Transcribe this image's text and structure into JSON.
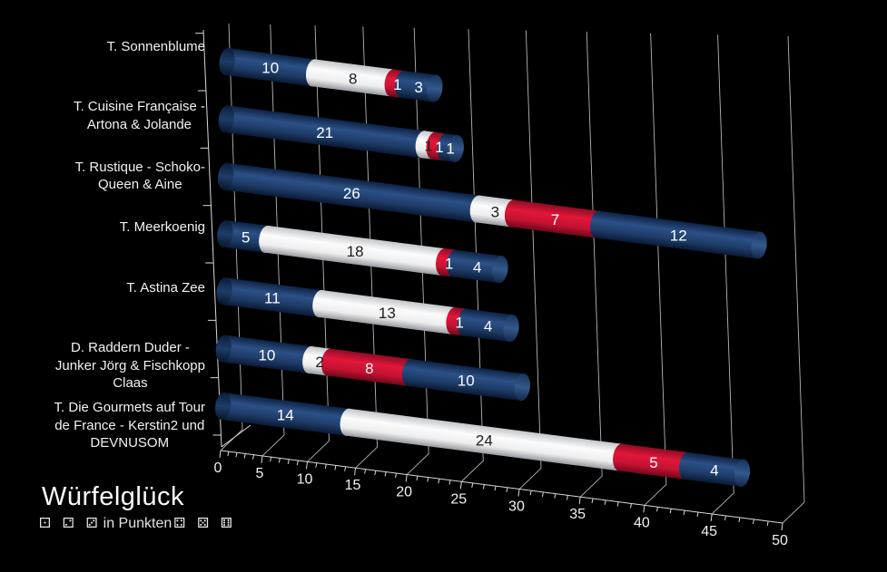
{
  "title": "Würfelglück",
  "subtitle": {
    "dice_left": "⚀ ⚁ ⚂",
    "text": "in Punkten",
    "dice_right": "⚃ ⚄ ⚅"
  },
  "colors": {
    "background": "#000000",
    "grid": "#c9c9c9",
    "axis_text": "#f2f2f2",
    "segment_navy": "#16325b",
    "segment_white": "#f2f2f2",
    "segment_red": "#d8122f"
  },
  "chart_data": {
    "type": "bar",
    "variant": "3d-horizontal-stacked-cylinders",
    "background": "#000000",
    "xlim": [
      0,
      50
    ],
    "x_tick_step": 5,
    "x_minor_tick_step": 1,
    "grid": true,
    "legend": "none",
    "axis_tick_labels": [
      0,
      5,
      10,
      15,
      20,
      25,
      30,
      35,
      40,
      45,
      50
    ],
    "segment_palette": [
      "#16325b",
      "#f2f2f2",
      "#d8122f",
      "#16325b"
    ],
    "segment_styles": [
      "navy",
      "white",
      "red",
      "navy"
    ],
    "label_color_on_dark": "#ffffff",
    "label_color_on_light": "#1d1d1d",
    "categories": [
      {
        "lines": [
          "T. Sonnenblume"
        ],
        "segments": [
          10,
          8,
          1,
          3
        ]
      },
      {
        "lines": [
          "T. Cuisine Française -",
          "Artona & Jolande"
        ],
        "segments": [
          21,
          1,
          1,
          1
        ]
      },
      {
        "lines": [
          "T. Rustique - Schoko-",
          "Queen & Aine"
        ],
        "segments": [
          26,
          3,
          7,
          12
        ]
      },
      {
        "lines": [
          "T. Meerkoenig"
        ],
        "segments": [
          5,
          18,
          1,
          4
        ]
      },
      {
        "lines": [
          "T. Astina Zee"
        ],
        "segments": [
          11,
          13,
          1,
          4
        ]
      },
      {
        "lines": [
          "D. Raddern Duder -",
          "Junker Jörg & Fischkopp",
          "Claas"
        ],
        "segments": [
          10,
          2,
          8,
          10
        ]
      },
      {
        "lines": [
          "T. Die Gourmets auf Tour",
          "de France - Kerstin2 und",
          "DEVNUSOM"
        ],
        "segments": [
          14,
          24,
          5,
          4
        ]
      }
    ]
  }
}
